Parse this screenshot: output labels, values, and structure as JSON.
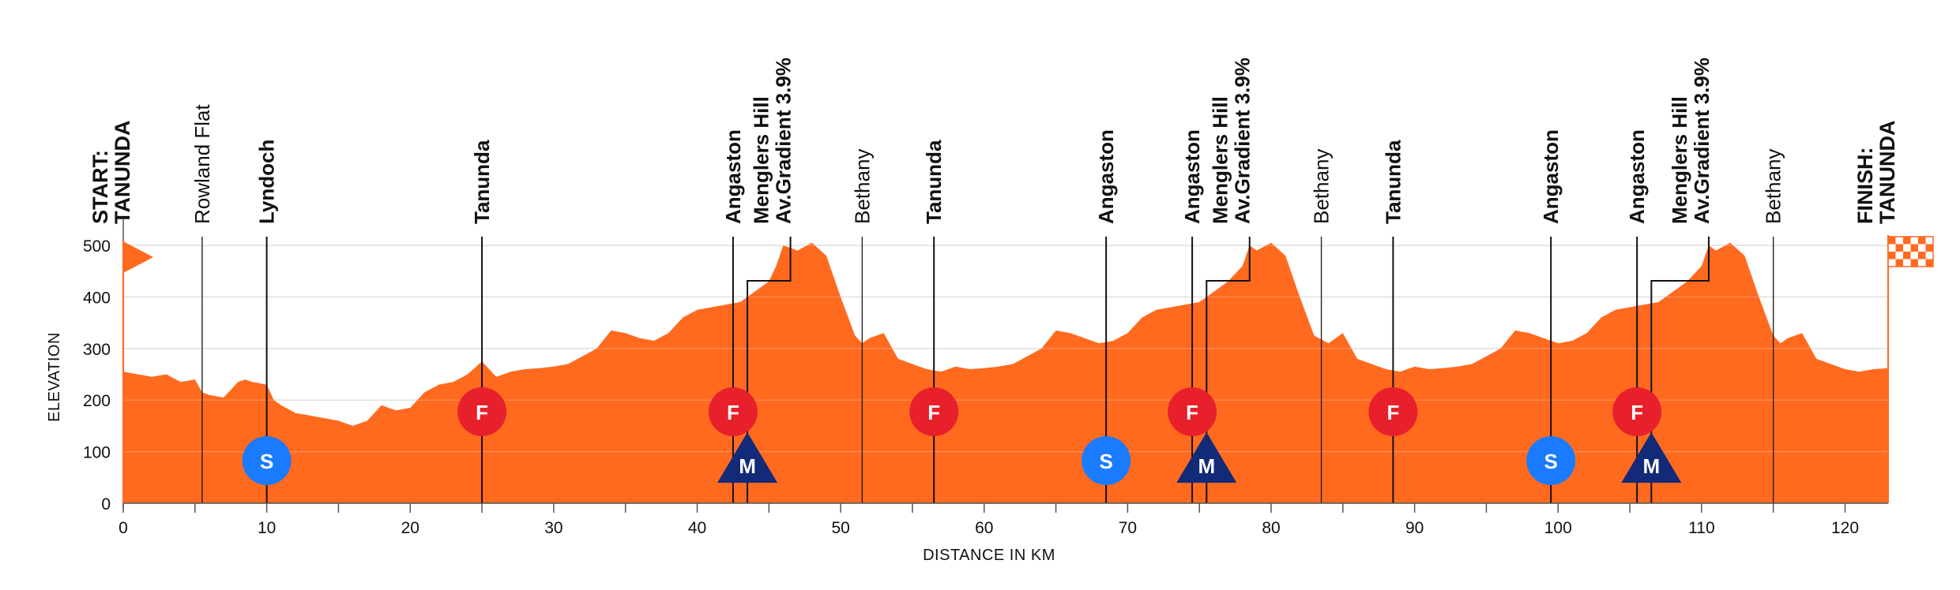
{
  "chart_data": {
    "type": "area",
    "xlabel": "DISTANCE IN KM",
    "ylabel": "ELEVATION",
    "xlim": [
      0,
      123
    ],
    "ylim": [
      0,
      520
    ],
    "x_ticks": [
      0,
      10,
      20,
      30,
      40,
      50,
      60,
      70,
      80,
      90,
      100,
      110,
      120
    ],
    "y_ticks": [
      0,
      100,
      200,
      300,
      400,
      500
    ],
    "grid": true,
    "colors": {
      "profile": "#FF6A1F",
      "feed": "#E8202C",
      "sprint": "#1A7BFF",
      "kom": "#132A78",
      "flag": "#FF6A1F"
    },
    "profile": {
      "x": [
        0,
        1,
        2,
        3,
        4,
        5,
        5.5,
        6,
        7,
        8,
        8.5,
        9,
        10,
        10.5,
        11,
        12,
        13,
        14,
        15,
        16,
        17,
        18,
        19,
        20,
        21,
        22,
        23,
        24,
        25,
        26,
        27,
        28,
        29,
        30,
        31,
        32,
        33,
        34,
        35,
        36,
        37,
        38,
        39,
        40,
        41,
        42,
        43,
        44,
        45,
        45.5,
        46,
        47,
        48,
        49,
        50,
        51,
        51.5,
        52,
        53,
        54,
        55,
        56,
        57,
        58,
        59,
        60,
        61,
        62,
        63,
        64,
        65,
        66,
        67,
        68,
        69,
        70,
        71,
        72,
        73,
        74,
        75,
        76,
        77,
        78,
        78.5,
        79,
        80,
        81,
        82,
        83,
        84,
        84.5,
        85,
        86,
        87,
        88,
        89,
        90,
        91,
        92,
        93,
        94,
        95,
        96,
        97,
        98,
        99,
        100,
        101,
        102,
        103,
        104,
        105,
        106,
        107,
        108,
        109,
        110,
        110.5,
        111,
        112,
        113,
        114,
        115,
        115.5,
        116,
        117,
        118,
        119,
        120,
        121,
        122,
        123
      ],
      "y": [
        255,
        250,
        245,
        250,
        235,
        240,
        215,
        210,
        205,
        235,
        240,
        235,
        230,
        200,
        190,
        175,
        170,
        165,
        160,
        150,
        160,
        190,
        180,
        185,
        215,
        230,
        235,
        250,
        275,
        245,
        255,
        260,
        262,
        265,
        270,
        285,
        300,
        335,
        330,
        320,
        315,
        330,
        360,
        375,
        380,
        385,
        390,
        410,
        430,
        460,
        500,
        490,
        505,
        480,
        400,
        325,
        310,
        320,
        330,
        280,
        270,
        260,
        255,
        265,
        260,
        262,
        265,
        270,
        285,
        300,
        335,
        330,
        320,
        310,
        315,
        330,
        360,
        375,
        380,
        385,
        390,
        410,
        430,
        460,
        500,
        490,
        505,
        480,
        400,
        325,
        310,
        320,
        330,
        280,
        270,
        260,
        255,
        265,
        260,
        262,
        265,
        270,
        285,
        300,
        335,
        330,
        320,
        310,
        315,
        330,
        360,
        375,
        380,
        385,
        390,
        410,
        430,
        460,
        500,
        490,
        505,
        480,
        400,
        325,
        310,
        320,
        330,
        280,
        270,
        260,
        255,
        260,
        262
      ]
    },
    "places": [
      {
        "km": 0,
        "label": [
          "START:",
          "TANUNDA"
        ],
        "style": "end"
      },
      {
        "km": 5.5,
        "label": [
          "Rowland Flat"
        ],
        "style": "minor"
      },
      {
        "km": 10,
        "label": [
          "Lyndoch"
        ],
        "style": "major"
      },
      {
        "km": 25,
        "label": [
          "Tanunda"
        ],
        "style": "major"
      },
      {
        "km": 42.5,
        "label": [
          "Angaston"
        ],
        "style": "major"
      },
      {
        "km": 45.5,
        "label": [
          "Menglers Hill",
          "Av.Gradient 3.9%"
        ],
        "style": "major"
      },
      {
        "km": 51.5,
        "label": [
          "Bethany"
        ],
        "style": "minor"
      },
      {
        "km": 56.5,
        "label": [
          "Tanunda"
        ],
        "style": "major"
      },
      {
        "km": 68.5,
        "label": [
          "Angaston"
        ],
        "style": "major"
      },
      {
        "km": 74.5,
        "label": [
          "Angaston"
        ],
        "style": "major"
      },
      {
        "km": 77.5,
        "label": [
          "Menglers Hill",
          "Av.Gradient 3.9%"
        ],
        "style": "major"
      },
      {
        "km": 83.5,
        "label": [
          "Bethany"
        ],
        "style": "minor"
      },
      {
        "km": 88.5,
        "label": [
          "Tanunda"
        ],
        "style": "major"
      },
      {
        "km": 99.5,
        "label": [
          "Angaston"
        ],
        "style": "major"
      },
      {
        "km": 105.5,
        "label": [
          "Angaston"
        ],
        "style": "major"
      },
      {
        "km": 109.5,
        "label": [
          "Menglers Hill",
          "Av.Gradient 3.9%"
        ],
        "style": "major"
      },
      {
        "km": 115,
        "label": [
          "Bethany"
        ],
        "style": "minor"
      },
      {
        "km": 123,
        "label": [
          "FINISH:",
          "TANUNDA"
        ],
        "style": "end"
      }
    ],
    "dividers": [
      {
        "km": 5.5,
        "weight": "thin"
      },
      {
        "km": 10,
        "weight": "bold"
      },
      {
        "km": 25,
        "weight": "bold"
      },
      {
        "km": 42.5,
        "weight": "bold"
      },
      {
        "km": 43.5,
        "weight": "bold",
        "elbow": 46.5
      },
      {
        "km": 51.5,
        "weight": "thin"
      },
      {
        "km": 56.5,
        "weight": "bold"
      },
      {
        "km": 68.5,
        "weight": "bold"
      },
      {
        "km": 74.5,
        "weight": "bold"
      },
      {
        "km": 75.5,
        "weight": "bold",
        "elbow": 78.5
      },
      {
        "km": 83.5,
        "weight": "thin"
      },
      {
        "km": 88.5,
        "weight": "bold"
      },
      {
        "km": 99.5,
        "weight": "bold"
      },
      {
        "km": 105.5,
        "weight": "bold"
      },
      {
        "km": 106.5,
        "weight": "bold",
        "elbow": 110.5
      },
      {
        "km": 115,
        "weight": "thin"
      }
    ],
    "markers": [
      {
        "km": 10,
        "type": "sprint",
        "label": "S"
      },
      {
        "km": 25,
        "type": "feed",
        "label": "F"
      },
      {
        "km": 42.5,
        "type": "feed",
        "label": "F"
      },
      {
        "km": 43.5,
        "type": "kom",
        "label": "M"
      },
      {
        "km": 56.5,
        "type": "feed",
        "label": "F"
      },
      {
        "km": 68.5,
        "type": "sprint",
        "label": "S"
      },
      {
        "km": 74.5,
        "type": "feed",
        "label": "F"
      },
      {
        "km": 75.5,
        "type": "kom",
        "label": "M"
      },
      {
        "km": 88.5,
        "type": "feed",
        "label": "F"
      },
      {
        "km": 99.5,
        "type": "sprint",
        "label": "S"
      },
      {
        "km": 105.5,
        "type": "feed",
        "label": "F"
      },
      {
        "km": 106.5,
        "type": "kom",
        "label": "M"
      }
    ]
  }
}
